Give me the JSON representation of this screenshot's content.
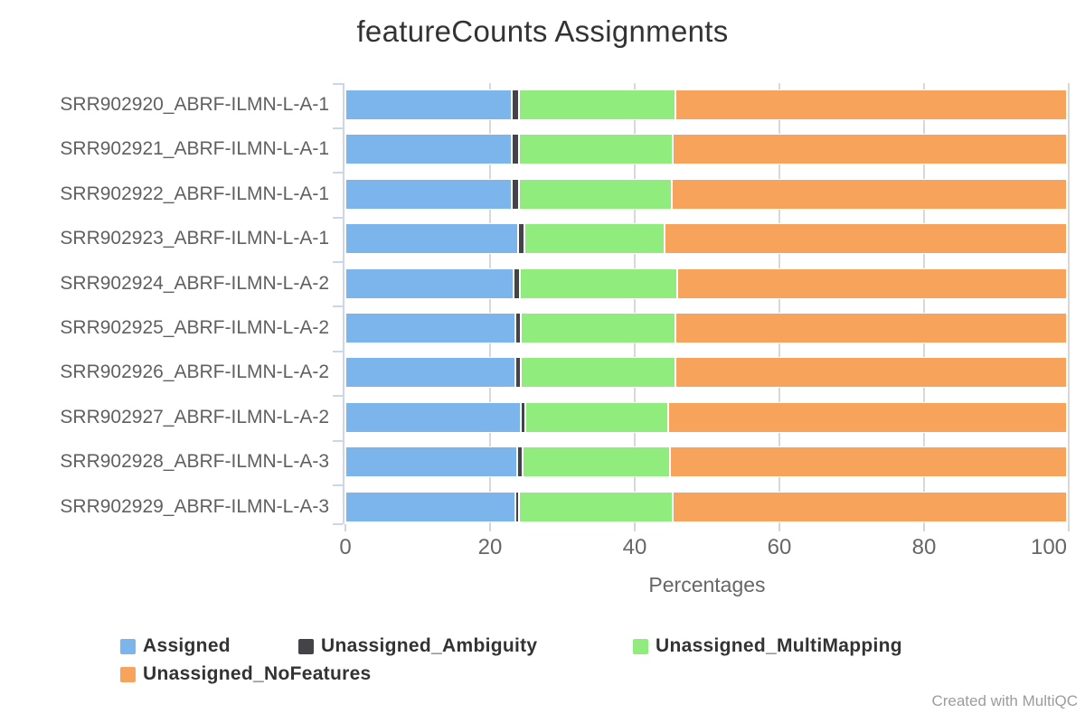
{
  "title": {
    "text": "featureCounts Assignments",
    "color": "#333333"
  },
  "credit": {
    "text": "Created with MultiQC",
    "color": "#9c9c9c"
  },
  "chart_data": {
    "type": "bar",
    "orientation": "horizontal",
    "stacking": "percent",
    "title": "featureCounts Assignments",
    "xlabel": "Percentages",
    "ylabel": "",
    "xlim": [
      0,
      100
    ],
    "xticks": [
      0,
      20,
      40,
      60,
      80,
      100
    ],
    "grid": true,
    "legend_position": "bottom-left",
    "categories": [
      "SRR902920_ABRF-ILMN-L-A-1",
      "SRR902921_ABRF-ILMN-L-A-1",
      "SRR902922_ABRF-ILMN-L-A-1",
      "SRR902923_ABRF-ILMN-L-A-1",
      "SRR902924_ABRF-ILMN-L-A-2",
      "SRR902925_ABRF-ILMN-L-A-2",
      "SRR902926_ABRF-ILMN-L-A-2",
      "SRR902927_ABRF-ILMN-L-A-2",
      "SRR902928_ABRF-ILMN-L-A-3",
      "SRR902929_ABRF-ILMN-L-A-3"
    ],
    "series": [
      {
        "name": "Assigned",
        "color": "#7cb5ec",
        "values": [
          23.1,
          23.1,
          23.1,
          23.9,
          23.3,
          23.5,
          23.5,
          24.3,
          23.8,
          23.5
        ]
      },
      {
        "name": "Unassigned_Ambiguity",
        "color": "#434348",
        "values": [
          0.9,
          0.9,
          0.9,
          0.9,
          0.9,
          0.8,
          0.8,
          0.6,
          0.8,
          0.6
        ]
      },
      {
        "name": "Unassigned_MultiMapping",
        "color": "#90ed7d",
        "values": [
          21.8,
          21.4,
          21.3,
          19.4,
          21.8,
          21.5,
          21.5,
          19.8,
          20.4,
          21.3
        ]
      },
      {
        "name": "Unassigned_NoFeatures",
        "color": "#f7a35c",
        "values": [
          54.2,
          54.6,
          54.7,
          55.8,
          54.0,
          54.2,
          54.2,
          55.3,
          55.0,
          54.6
        ]
      }
    ]
  },
  "legend": {
    "items": [
      {
        "label": "Assigned",
        "color": "#7cb5ec"
      },
      {
        "label": "Unassigned_Ambiguity",
        "color": "#434348"
      },
      {
        "label": "Unassigned_MultiMapping",
        "color": "#90ed7d"
      },
      {
        "label": "Unassigned_NoFeatures",
        "color": "#f7a35c"
      }
    ]
  },
  "colors": {
    "background": "#ffffff",
    "grid": "#d8d8d8",
    "axis": "#ccd6eb",
    "tick_text": "#666666",
    "category_text": "#606060",
    "title_text": "#333333"
  }
}
